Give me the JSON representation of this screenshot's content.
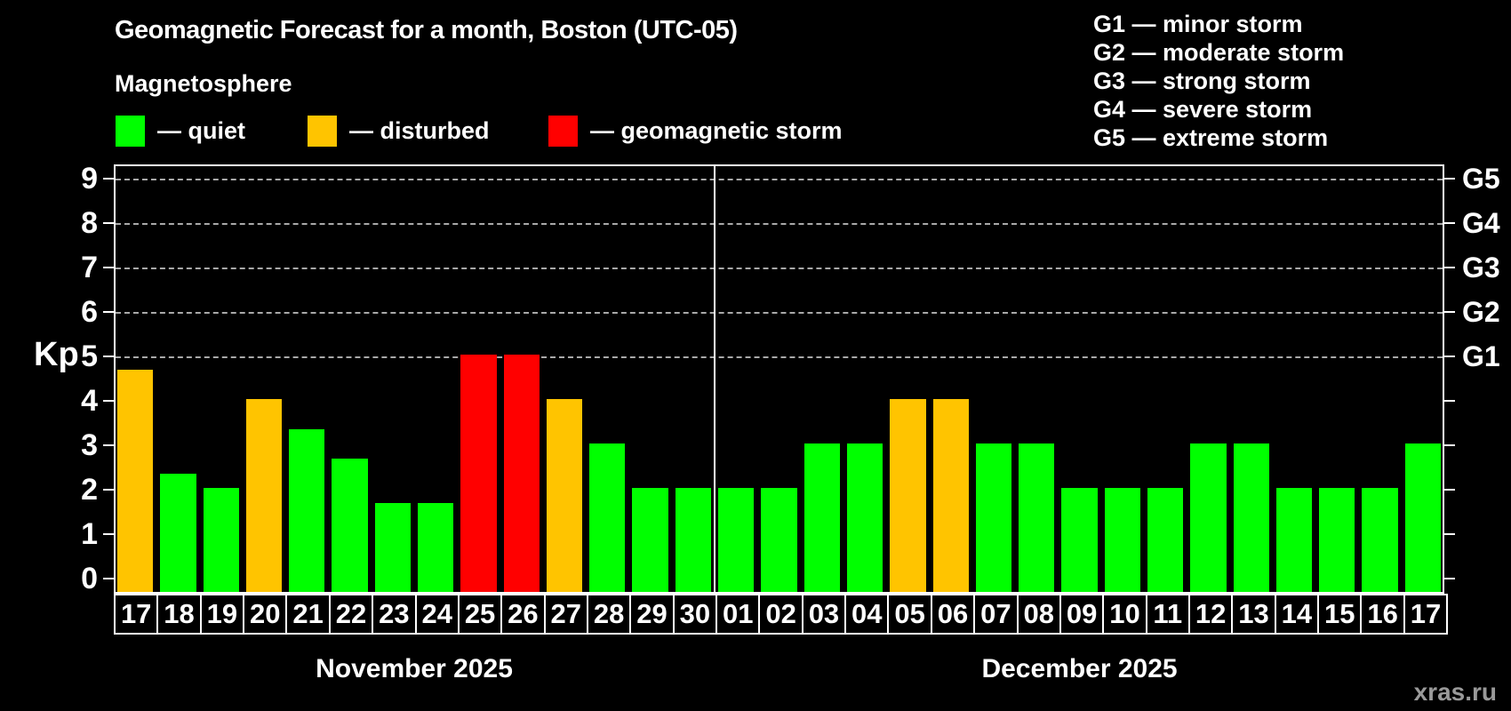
{
  "header": {
    "title": "Geomagnetic Forecast for a month, Boston (UTC-05)",
    "subtitle": "Magnetosphere"
  },
  "legend": {
    "items": [
      {
        "status": "quiet",
        "label": "— quiet",
        "color": "#00ff00"
      },
      {
        "status": "disturbed",
        "label": "— disturbed",
        "color": "#ffc400"
      },
      {
        "status": "storm",
        "label": "— geomagnetic storm",
        "color": "#ff0000"
      }
    ]
  },
  "g_legend": [
    "G1 — minor storm",
    "G2 — moderate storm",
    "G3 — strong storm",
    "G4 — severe storm",
    "G5 — extreme storm"
  ],
  "watermark": "xras.ru",
  "chart_data": {
    "type": "bar",
    "title": "Geomagnetic Forecast for a month, Boston (UTC-05)",
    "ylabel": "Kp",
    "ylim": [
      0,
      9
    ],
    "yticks": [
      0,
      1,
      2,
      3,
      4,
      5,
      6,
      7,
      8,
      9
    ],
    "gridlines_kp": [
      5,
      6,
      7,
      8,
      9
    ],
    "grid": "dashed, G-levels only",
    "legend_position": "top",
    "right_axis": [
      {
        "label": "G5",
        "kp": 9
      },
      {
        "label": "G4",
        "kp": 8
      },
      {
        "label": "G3",
        "kp": 7
      },
      {
        "label": "G2",
        "kp": 6
      },
      {
        "label": "G1",
        "kp": 5
      }
    ],
    "months": [
      {
        "label": "November 2025",
        "days": 14
      },
      {
        "label": "December 2025",
        "days": 17
      }
    ],
    "categories": [
      "17",
      "18",
      "19",
      "20",
      "21",
      "22",
      "23",
      "24",
      "25",
      "26",
      "27",
      "28",
      "29",
      "30",
      "01",
      "02",
      "03",
      "04",
      "05",
      "06",
      "07",
      "08",
      "09",
      "10",
      "11",
      "12",
      "13",
      "14",
      "15",
      "16",
      "17"
    ],
    "values": [
      4.67,
      2.33,
      2,
      4,
      3.33,
      2.67,
      1.67,
      1.67,
      5,
      5,
      4,
      3,
      2,
      2,
      2,
      2,
      3,
      3,
      4,
      4,
      3,
      3,
      2,
      2,
      2,
      3,
      3,
      2,
      2,
      2,
      3
    ],
    "statuses": [
      "disturbed",
      "quiet",
      "quiet",
      "disturbed",
      "quiet",
      "quiet",
      "quiet",
      "quiet",
      "storm",
      "storm",
      "disturbed",
      "quiet",
      "quiet",
      "quiet",
      "quiet",
      "quiet",
      "quiet",
      "quiet",
      "disturbed",
      "disturbed",
      "quiet",
      "quiet",
      "quiet",
      "quiet",
      "quiet",
      "quiet",
      "quiet",
      "quiet",
      "quiet",
      "quiet",
      "quiet"
    ],
    "status_colors": {
      "quiet": "#00ff00",
      "disturbed": "#ffc400",
      "storm": "#ff0000"
    }
  }
}
